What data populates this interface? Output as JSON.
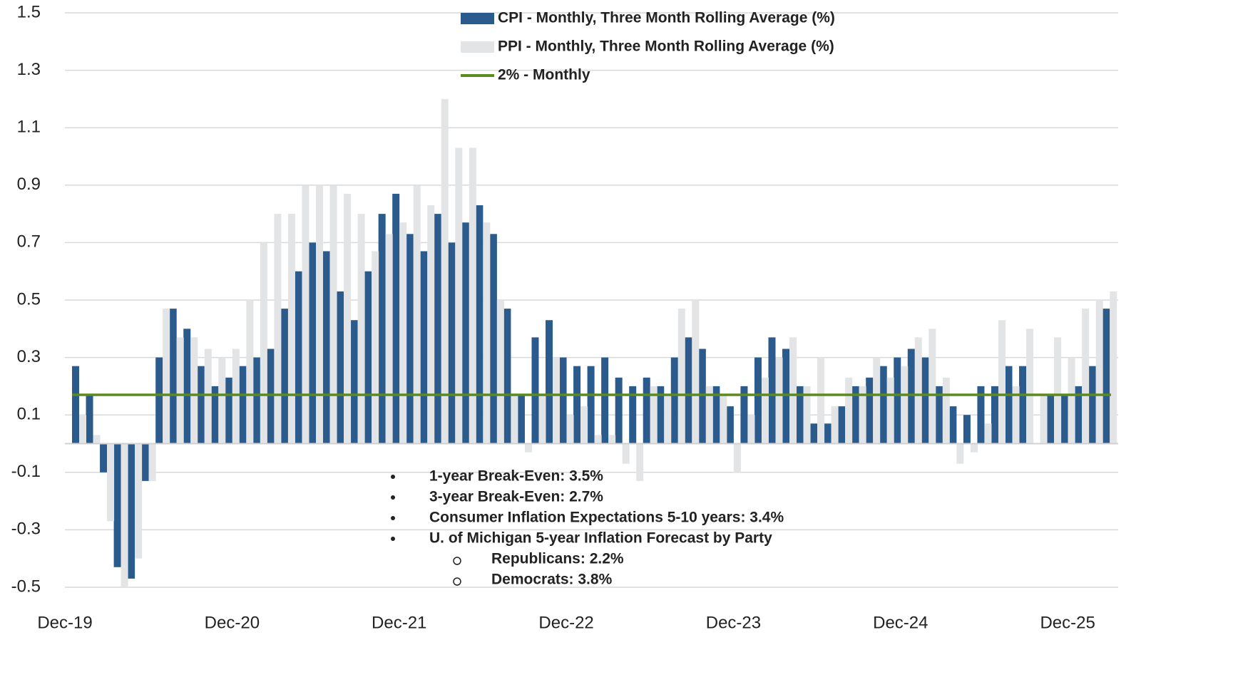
{
  "chart_data": {
    "type": "bar",
    "categories": [
      "Dec-19",
      null,
      null,
      null,
      null,
      null,
      null,
      null,
      null,
      null,
      null,
      null,
      "Dec-20",
      null,
      null,
      null,
      null,
      null,
      null,
      null,
      null,
      null,
      null,
      null,
      "Dec-21",
      null,
      null,
      null,
      null,
      null,
      null,
      null,
      null,
      null,
      null,
      null,
      "Dec-22",
      null,
      null,
      null,
      null,
      null,
      null,
      null,
      null,
      null,
      null,
      null,
      "Dec-23",
      null,
      null,
      null,
      null,
      null,
      null,
      null,
      null,
      null,
      null,
      null,
      "Dec-24",
      null,
      null,
      null,
      null,
      null,
      null,
      null,
      null,
      null,
      null,
      null,
      "Dec-25",
      null,
      null
    ],
    "series": [
      {
        "name": "CPI - Monthly, Three Month Rolling Average (%)",
        "color": "#2b5b8c",
        "values": [
          0.27,
          0.17,
          -0.1,
          -0.43,
          -0.47,
          -0.13,
          0.3,
          0.47,
          0.4,
          0.27,
          0.2,
          0.23,
          0.27,
          0.3,
          0.33,
          0.47,
          0.6,
          0.7,
          0.67,
          0.53,
          0.43,
          0.6,
          0.8,
          0.87,
          0.73,
          0.67,
          0.8,
          0.7,
          0.77,
          0.83,
          0.73,
          0.47,
          0.17,
          0.37,
          0.43,
          0.3,
          0.27,
          0.27,
          0.3,
          0.23,
          0.2,
          0.23,
          0.2,
          0.3,
          0.37,
          0.33,
          0.2,
          0.13,
          0.2,
          0.3,
          0.37,
          0.33,
          0.2,
          0.07,
          0.07,
          0.13,
          0.2,
          0.23,
          0.27,
          0.3,
          0.33,
          0.3,
          0.2,
          0.13,
          0.1,
          0.2,
          0.2,
          0.27,
          0.27,
          null,
          0.17,
          0.17,
          0.2,
          0.27,
          0.47
        ]
      },
      {
        "name": "PPI - Monthly, Three Month Rolling Average (%)",
        "color": "#e3e4e6",
        "values": [
          0.1,
          0.03,
          -0.27,
          -0.5,
          -0.4,
          -0.13,
          0.47,
          0.37,
          0.37,
          0.33,
          0.3,
          0.33,
          0.5,
          0.7,
          0.8,
          0.8,
          0.9,
          0.9,
          0.9,
          0.87,
          0.8,
          0.67,
          0.73,
          0.77,
          0.9,
          0.83,
          1.2,
          1.03,
          1.03,
          0.77,
          0.5,
          0.17,
          -0.03,
          0.17,
          0.3,
          0.1,
          0.13,
          0.03,
          0.03,
          -0.07,
          -0.13,
          0.2,
          0.17,
          0.47,
          0.5,
          0.2,
          0.17,
          -0.1,
          0.1,
          0.23,
          0.3,
          0.37,
          0.2,
          0.3,
          0.13,
          0.23,
          0.2,
          0.3,
          0.23,
          0.27,
          0.37,
          0.4,
          0.23,
          -0.07,
          -0.03,
          0.07,
          0.43,
          0.2,
          0.4,
          0.17,
          0.37,
          0.3,
          0.47,
          0.5,
          0.53
        ]
      }
    ],
    "reference_line": {
      "name": "2% - Monthly",
      "color": "#5b8a1e",
      "value": 0.17
    },
    "ylim": [
      -0.5,
      1.5
    ],
    "yticks": [
      1.5,
      1.3,
      1.1,
      0.9,
      0.7,
      0.5,
      0.3,
      0.1,
      -0.1,
      -0.3,
      -0.5
    ],
    "grid": true,
    "annotations": [
      {
        "text": "1-year Break-Even: 3.5%",
        "level": 1
      },
      {
        "text": "3-year Break-Even: 2.7%",
        "level": 1
      },
      {
        "text": "Consumer Inflation Expectations 5-10 years: 3.4%",
        "level": 1
      },
      {
        "text": "U. of Michigan 5-year Inflation Forecast by Party",
        "level": 1
      },
      {
        "text": "Republicans: 2.2%",
        "level": 2
      },
      {
        "text": "Democrats: 3.8%",
        "level": 2
      }
    ]
  }
}
